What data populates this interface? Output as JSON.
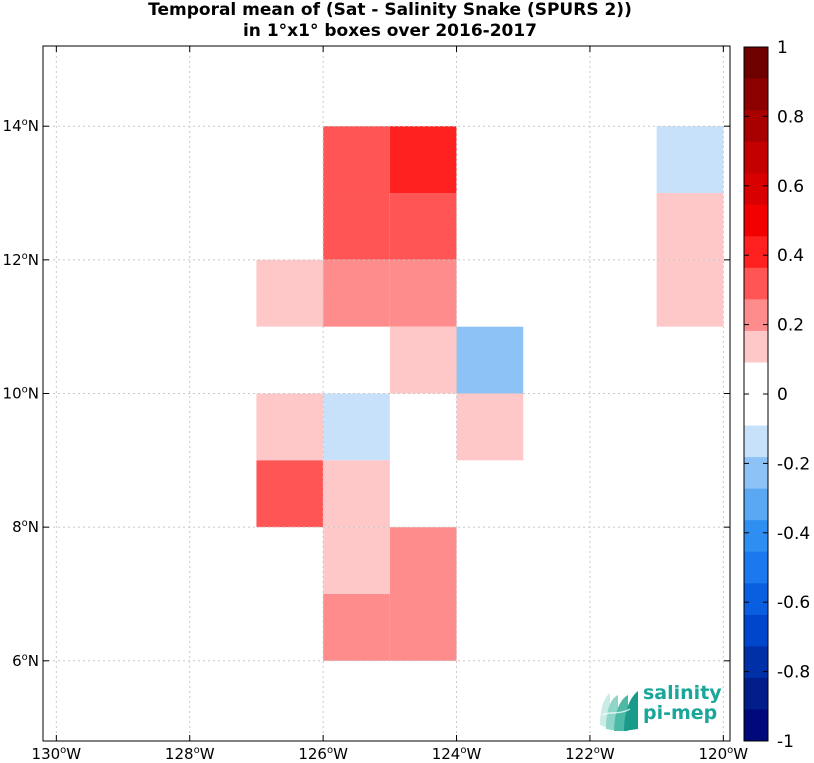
{
  "chart_data": {
    "type": "heatmap",
    "title_line1": "Temporal mean of (Sat - Salinity Snake (SPURS 2))",
    "title_line2": "in 1°x1° boxes over 2016-2017",
    "xlim": [
      -130.2,
      -119.9
    ],
    "ylim": [
      4.8,
      15.2
    ],
    "x_ticks": [
      {
        "value": -130,
        "deg": "130",
        "hemi": "W"
      },
      {
        "value": -128,
        "deg": "128",
        "hemi": "W"
      },
      {
        "value": -126,
        "deg": "126",
        "hemi": "W"
      },
      {
        "value": -124,
        "deg": "124",
        "hemi": "W"
      },
      {
        "value": -122,
        "deg": "122",
        "hemi": "W"
      },
      {
        "value": -120,
        "deg": "120",
        "hemi": "W"
      }
    ],
    "y_ticks": [
      {
        "value": 6,
        "deg": "6",
        "hemi": "N"
      },
      {
        "value": 8,
        "deg": "8",
        "hemi": "N"
      },
      {
        "value": 10,
        "deg": "10",
        "hemi": "N"
      },
      {
        "value": 12,
        "deg": "12",
        "hemi": "N"
      },
      {
        "value": 14,
        "deg": "14",
        "hemi": "N"
      }
    ],
    "grid": true,
    "cell_size_deg": 1,
    "cells": [
      {
        "lon": -126,
        "lat": 13,
        "value": 0.35
      },
      {
        "lon": -125,
        "lat": 13,
        "value": 0.45
      },
      {
        "lon": -126,
        "lat": 12,
        "value": 0.35
      },
      {
        "lon": -125,
        "lat": 12,
        "value": 0.35
      },
      {
        "lon": -127,
        "lat": 11,
        "value": 0.15
      },
      {
        "lon": -126,
        "lat": 11,
        "value": 0.25
      },
      {
        "lon": -125,
        "lat": 11,
        "value": 0.25
      },
      {
        "lon": -125,
        "lat": 10,
        "value": 0.15
      },
      {
        "lon": -124,
        "lat": 10,
        "value": -0.25
      },
      {
        "lon": -127,
        "lat": 9,
        "value": 0.15
      },
      {
        "lon": -126,
        "lat": 9,
        "value": -0.15
      },
      {
        "lon": -124,
        "lat": 9,
        "value": 0.15
      },
      {
        "lon": -127,
        "lat": 8,
        "value": 0.35
      },
      {
        "lon": -126,
        "lat": 8,
        "value": 0.15
      },
      {
        "lon": -126,
        "lat": 7,
        "value": 0.15
      },
      {
        "lon": -125,
        "lat": 7,
        "value": 0.25
      },
      {
        "lon": -126,
        "lat": 6,
        "value": 0.25
      },
      {
        "lon": -125,
        "lat": 6,
        "value": 0.25
      },
      {
        "lon": -121,
        "lat": 13,
        "value": -0.15
      },
      {
        "lon": -121,
        "lat": 12,
        "value": 0.15
      },
      {
        "lon": -121,
        "lat": 11,
        "value": 0.15
      }
    ],
    "colorbar": {
      "range": [
        -1,
        1
      ],
      "tick_values": [
        1,
        0.8,
        0.6,
        0.4,
        0.2,
        0,
        -0.2,
        -0.4,
        -0.6,
        -0.8,
        -1
      ],
      "tick_labels": [
        "1",
        "0.8",
        "0.6",
        "0.4",
        "0.2",
        "0",
        "-0.2",
        "-0.4",
        "-0.6",
        "-0.8",
        "-1"
      ],
      "colors_top_to_bottom": [
        "#6e0000",
        "#8c0000",
        "#a80000",
        "#c40000",
        "#d80000",
        "#f20000",
        "#ff2020",
        "#ff5555",
        "#ff8c8c",
        "#ffc8c8",
        "#ffffff",
        "#ffffff",
        "#c8e1fb",
        "#8dc2f7",
        "#5aa8f3",
        "#2f8ef1",
        "#1b78ee",
        "#0a5fe0",
        "#0046cc",
        "#0030a8",
        "#001d88",
        "#00087a"
      ]
    }
  },
  "logo": {
    "line1": "salinity",
    "line2": "pi-mep"
  }
}
